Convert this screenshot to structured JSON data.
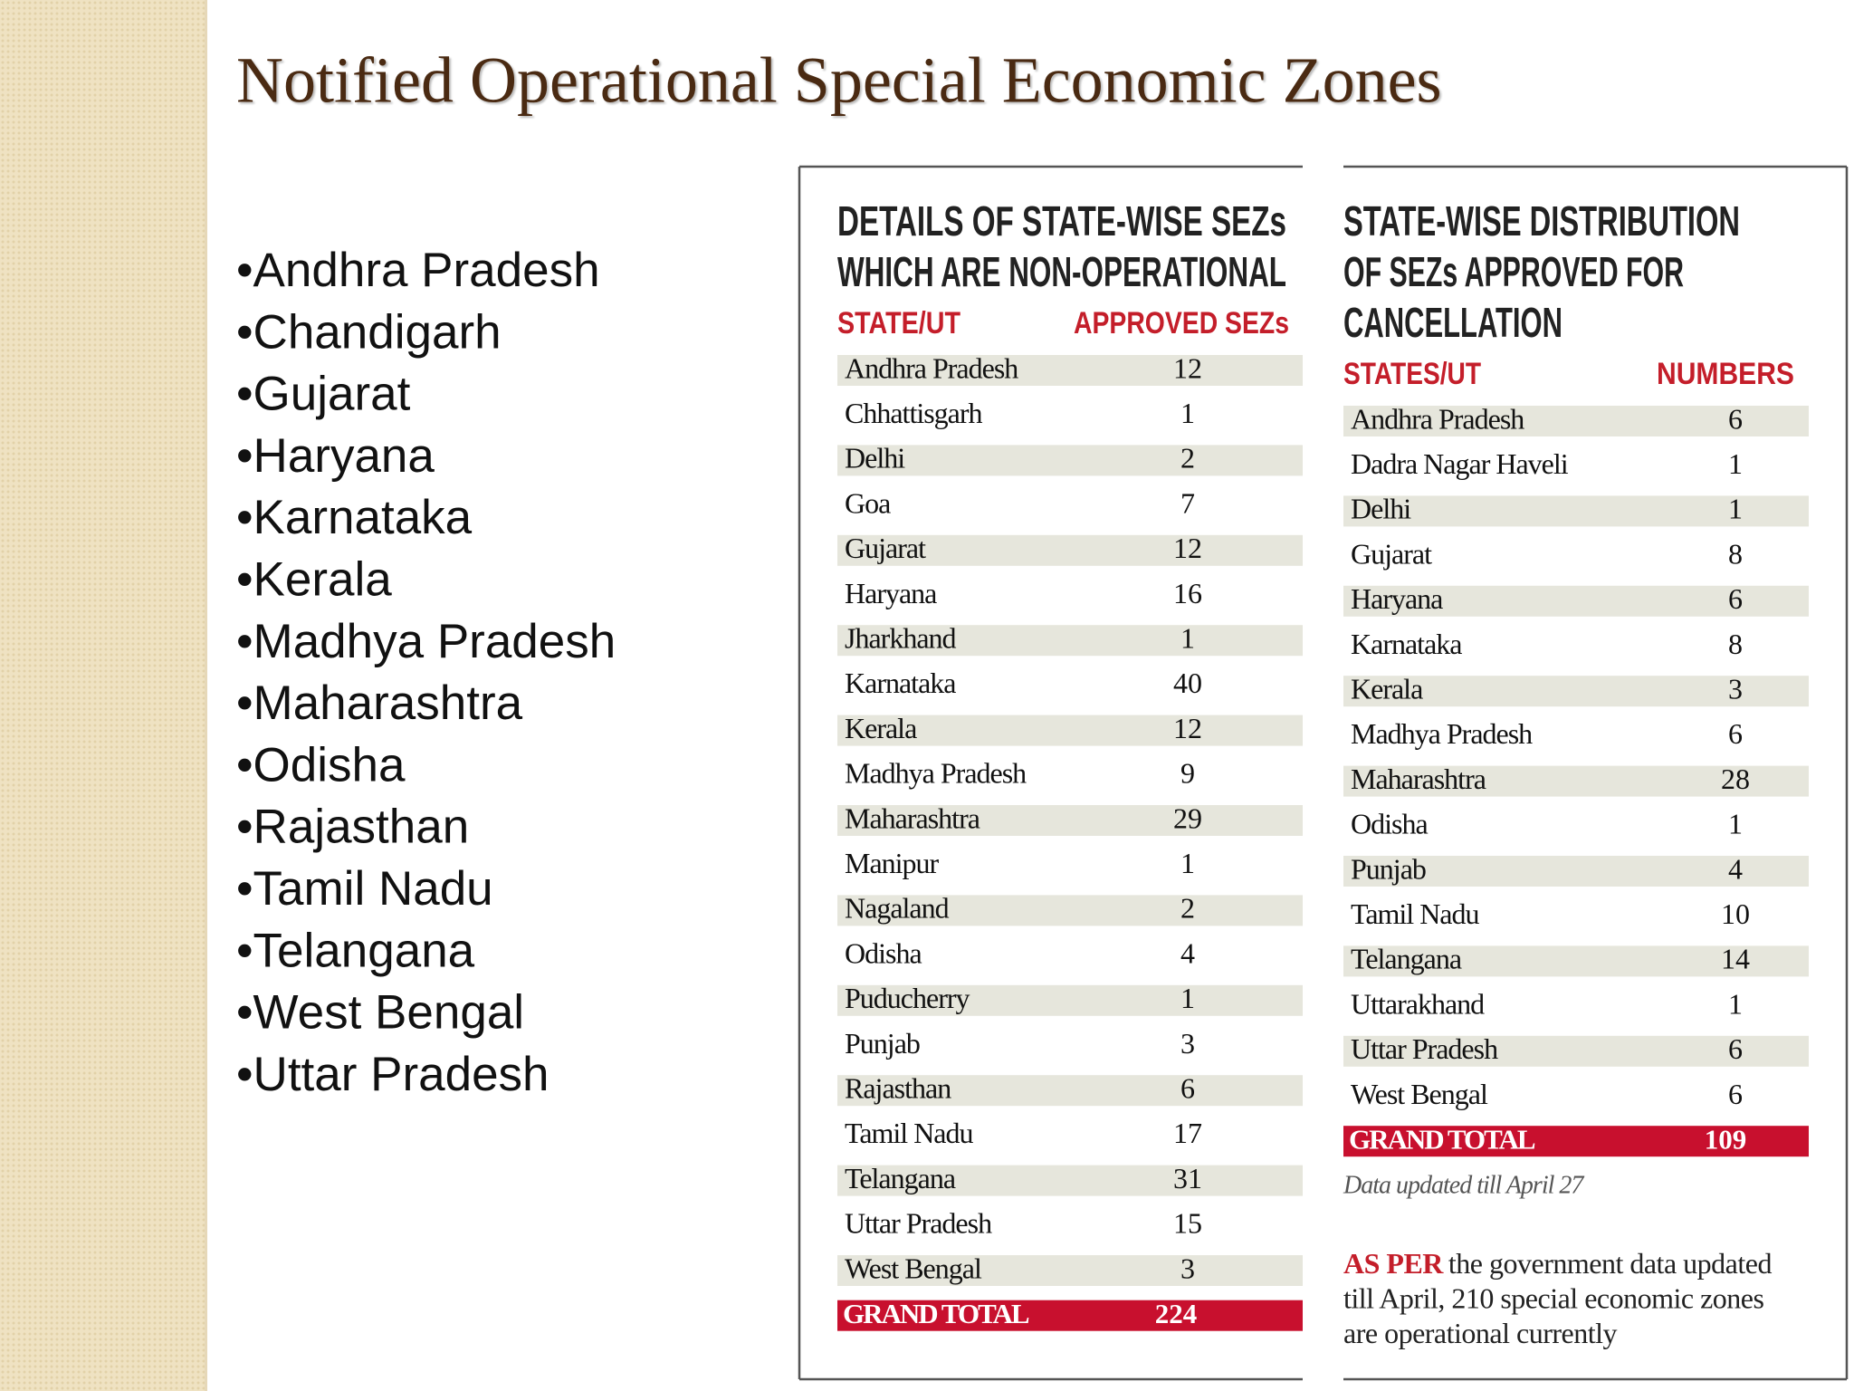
{
  "title": "Notified Operational Special Economic Zones",
  "bullets": [
    "•Andhra Pradesh",
    "•Chandigarh",
    "•Gujarat",
    "•Haryana",
    "•Karnataka",
    "•Kerala",
    "•Madhya Pradesh",
    "•Maharashtra",
    "•Odisha",
    "•Rajasthan",
    "•Tamil Nadu",
    "•Telangana",
    "•West Bengal",
    "•Uttar Pradesh"
  ],
  "tables": [
    {
      "heading": [
        "DETAILS OF STATE-WISE SEZs",
        "WHICH ARE NON-OPERATIONAL"
      ],
      "columns": [
        "STATE/UT",
        "APPROVED SEZs"
      ],
      "rows": [
        [
          "Andhra Pradesh",
          12
        ],
        [
          "Chhattisgarh",
          1
        ],
        [
          "Delhi",
          2
        ],
        [
          "Goa",
          7
        ],
        [
          "Gujarat",
          12
        ],
        [
          "Haryana",
          16
        ],
        [
          "Jharkhand",
          1
        ],
        [
          "Karnataka",
          40
        ],
        [
          "Kerala",
          12
        ],
        [
          "Madhya Pradesh",
          9
        ],
        [
          "Maharashtra",
          29
        ],
        [
          "Manipur",
          1
        ],
        [
          "Nagaland",
          2
        ],
        [
          "Odisha",
          4
        ],
        [
          "Puducherry",
          1
        ],
        [
          "Punjab",
          3
        ],
        [
          "Rajasthan",
          6
        ],
        [
          "Tamil Nadu",
          17
        ],
        [
          "Telangana",
          31
        ],
        [
          "Uttar Pradesh",
          15
        ],
        [
          "West Bengal",
          3
        ]
      ],
      "total": [
        "GRAND TOTAL",
        224
      ]
    },
    {
      "heading": [
        "STATE-WISE DISTRIBUTION",
        "OF SEZs APPROVED FOR",
        "CANCELLATION"
      ],
      "columns": [
        "STATES/UT",
        "NUMBERS"
      ],
      "rows": [
        [
          "Andhra Pradesh",
          6
        ],
        [
          "Dadra Nagar Haveli",
          1
        ],
        [
          "Delhi",
          1
        ],
        [
          "Gujarat",
          8
        ],
        [
          "Haryana",
          6
        ],
        [
          "Karnataka",
          8
        ],
        [
          "Kerala",
          3
        ],
        [
          "Madhya Pradesh",
          6
        ],
        [
          "Maharashtra",
          28
        ],
        [
          "Odisha",
          1
        ],
        [
          "Punjab",
          4
        ],
        [
          "Tamil Nadu",
          10
        ],
        [
          "Telangana",
          14
        ],
        [
          "Uttarakhand",
          1
        ],
        [
          "Uttar Pradesh",
          6
        ],
        [
          "West Bengal",
          6
        ]
      ],
      "total": [
        "GRAND TOTAL",
        109
      ]
    }
  ],
  "note": "Data updated till April 27",
  "footnote": {
    "lead": "AS PER",
    "lines": [
      "the government data updated",
      "till April, 210 special economic zones",
      "are operational currently"
    ]
  }
}
